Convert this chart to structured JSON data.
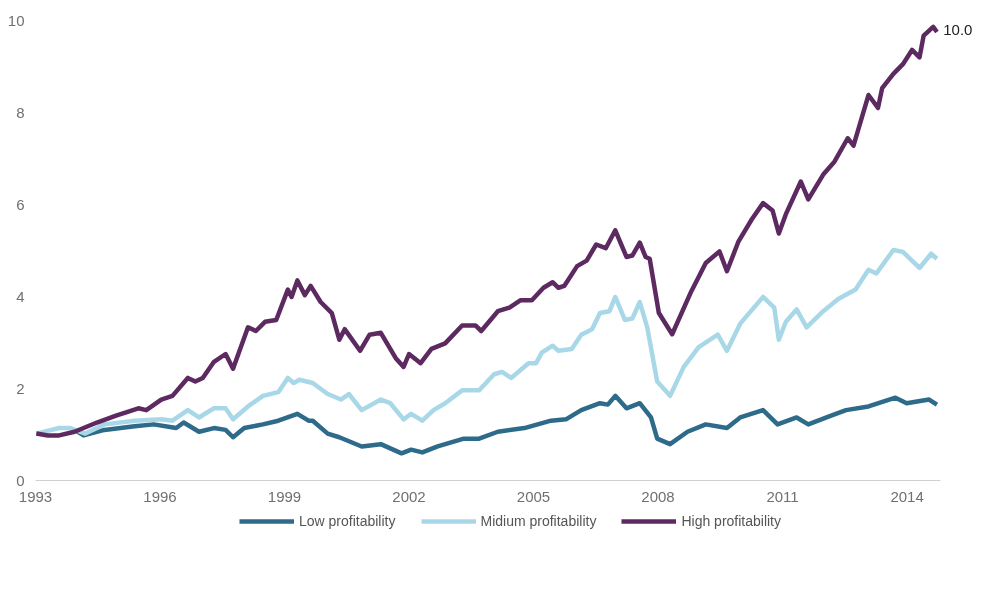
{
  "chart_data": {
    "type": "line",
    "xlim": [
      1993,
      2014.8
    ],
    "ylim": [
      0,
      10
    ],
    "xticks": [
      1993,
      1996,
      1999,
      2002,
      2005,
      2008,
      2011,
      2014
    ],
    "yticks": [
      0,
      2,
      4,
      6,
      8,
      10
    ],
    "grid": false,
    "legend": "bottom",
    "marker": "none",
    "line_style": "solid",
    "annotations": [
      {
        "text": "10.0",
        "x": 2014.63,
        "y": 9.86
      }
    ],
    "series": [
      {
        "name": "Low profitability",
        "color": "#2e6b8a",
        "x": [
          1993.94,
          1994.16,
          1994.66,
          1995.39,
          1995.85,
          1996.39,
          1996.57,
          1996.94,
          1997.3,
          1997.58,
          1997.76,
          1998.03,
          1998.48,
          1998.85,
          1999.31,
          1999.58,
          1999.68,
          2000.04,
          2000.32,
          2000.86,
          2001.32,
          2001.82,
          2002.05,
          2002.32,
          2002.69,
          2003.32,
          2003.69,
          2004.14,
          2004.78,
          2005.42,
          2005.78,
          2006.15,
          2006.6,
          2006.79,
          2006.97,
          2007.24,
          2007.56,
          2007.83,
          2007.98,
          2008.29,
          2008.71,
          2009.15,
          2009.66,
          2009.98,
          2010.53,
          2010.88,
          2011.34,
          2011.62,
          2012.17,
          2012.53,
          2013.07,
          2013.72,
          2013.99,
          2014.53,
          2014.72
        ],
        "values": [
          1.1,
          0.98,
          1.1,
          1.18,
          1.22,
          1.14,
          1.26,
          1.06,
          1.14,
          1.1,
          0.94,
          1.14,
          1.22,
          1.3,
          1.45,
          1.3,
          1.3,
          1.02,
          0.94,
          0.74,
          0.79,
          0.59,
          0.67,
          0.61,
          0.74,
          0.91,
          0.91,
          1.06,
          1.14,
          1.3,
          1.33,
          1.53,
          1.68,
          1.65,
          1.84,
          1.57,
          1.68,
          1.37,
          0.91,
          0.79,
          1.06,
          1.22,
          1.14,
          1.37,
          1.53,
          1.22,
          1.37,
          1.22,
          1.41,
          1.53,
          1.61,
          1.8,
          1.68,
          1.76,
          1.65
        ]
      },
      {
        "name": "Midium profitability",
        "color": "#a8d8e8",
        "x": [
          1993.02,
          1993.57,
          1993.84,
          1994.2,
          1994.66,
          1995.39,
          1996.03,
          1996.3,
          1996.67,
          1996.94,
          1997.3,
          1997.58,
          1997.76,
          1998.12,
          1998.48,
          1998.85,
          1999.08,
          1999.22,
          1999.36,
          1999.68,
          2000.04,
          2000.36,
          2000.55,
          2000.86,
          2001.32,
          2001.55,
          2001.87,
          2002.05,
          2002.32,
          2002.59,
          2002.87,
          2003.28,
          2003.69,
          2004.05,
          2004.24,
          2004.46,
          2004.88,
          2005.06,
          2005.2,
          2005.46,
          2005.6,
          2005.92,
          2006.15,
          2006.41,
          2006.6,
          2006.83,
          2006.97,
          2007.2,
          2007.38,
          2007.56,
          2007.74,
          2007.98,
          2008.29,
          2008.62,
          2008.98,
          2009.44,
          2009.66,
          2009.98,
          2010.53,
          2010.8,
          2010.91,
          2011.08,
          2011.34,
          2011.58,
          2011.98,
          2012.35,
          2012.76,
          2013.07,
          2013.26,
          2013.67,
          2013.9,
          2014.3,
          2014.58,
          2014.72
        ],
        "values": [
          1.02,
          1.14,
          1.14,
          1.02,
          1.22,
          1.3,
          1.33,
          1.3,
          1.53,
          1.37,
          1.57,
          1.57,
          1.33,
          1.61,
          1.84,
          1.92,
          2.23,
          2.12,
          2.19,
          2.12,
          1.88,
          1.76,
          1.88,
          1.53,
          1.76,
          1.68,
          1.33,
          1.45,
          1.3,
          1.53,
          1.68,
          1.96,
          1.96,
          2.31,
          2.36,
          2.23,
          2.55,
          2.55,
          2.78,
          2.93,
          2.82,
          2.86,
          3.17,
          3.29,
          3.64,
          3.68,
          3.99,
          3.49,
          3.52,
          3.88,
          3.33,
          2.15,
          1.84,
          2.47,
          2.9,
          3.17,
          2.82,
          3.41,
          3.99,
          3.76,
          3.06,
          3.45,
          3.72,
          3.33,
          3.68,
          3.95,
          4.15,
          4.58,
          4.5,
          5.01,
          4.97,
          4.62,
          4.93,
          4.82
        ]
      },
      {
        "name": "High profitability",
        "color": "#5c2a60",
        "x": [
          1993.02,
          1993.3,
          1993.57,
          1993.94,
          1994.48,
          1994.94,
          1995.48,
          1995.67,
          1996.03,
          1996.3,
          1996.67,
          1996.85,
          1997.03,
          1997.3,
          1997.58,
          1997.76,
          1998.12,
          1998.31,
          1998.53,
          1998.8,
          1999.08,
          1999.17,
          1999.31,
          1999.49,
          1999.63,
          1999.87,
          2000.14,
          2000.32,
          2000.45,
          2000.82,
          2001.05,
          2001.32,
          2001.68,
          2001.87,
          2002.0,
          2002.28,
          2002.54,
          2002.87,
          2003.28,
          2003.6,
          2003.74,
          2004.14,
          2004.42,
          2004.69,
          2004.96,
          2005.24,
          2005.46,
          2005.6,
          2005.74,
          2006.05,
          2006.28,
          2006.51,
          2006.74,
          2006.97,
          2007.24,
          2007.38,
          2007.56,
          2007.7,
          2007.8,
          2008.02,
          2008.34,
          2008.8,
          2009.15,
          2009.48,
          2009.66,
          2009.94,
          2010.26,
          2010.53,
          2010.76,
          2010.91,
          2011.08,
          2011.44,
          2011.62,
          2011.98,
          2012.25,
          2012.57,
          2012.71,
          2013.07,
          2013.3,
          2013.4,
          2013.67,
          2013.9,
          2014.12,
          2014.3,
          2014.4,
          2014.63,
          2014.72
        ],
        "values": [
          1.02,
          0.98,
          0.98,
          1.06,
          1.26,
          1.41,
          1.57,
          1.53,
          1.76,
          1.84,
          2.23,
          2.15,
          2.23,
          2.58,
          2.75,
          2.43,
          3.33,
          3.25,
          3.45,
          3.49,
          4.15,
          3.99,
          4.35,
          4.03,
          4.23,
          3.88,
          3.64,
          3.06,
          3.29,
          2.82,
          3.17,
          3.21,
          2.66,
          2.47,
          2.75,
          2.55,
          2.86,
          2.98,
          3.37,
          3.37,
          3.25,
          3.68,
          3.76,
          3.92,
          3.92,
          4.19,
          4.31,
          4.19,
          4.23,
          4.66,
          4.78,
          5.13,
          5.05,
          5.44,
          4.86,
          4.89,
          5.17,
          4.86,
          4.82,
          3.64,
          3.18,
          4.11,
          4.73,
          4.98,
          4.55,
          5.2,
          5.68,
          6.03,
          5.87,
          5.37,
          5.79,
          6.5,
          6.11,
          6.65,
          6.93,
          7.44,
          7.28,
          8.38,
          8.1,
          8.53,
          8.84,
          9.05,
          9.36,
          9.2,
          9.67,
          9.86,
          9.75
        ]
      }
    ]
  }
}
